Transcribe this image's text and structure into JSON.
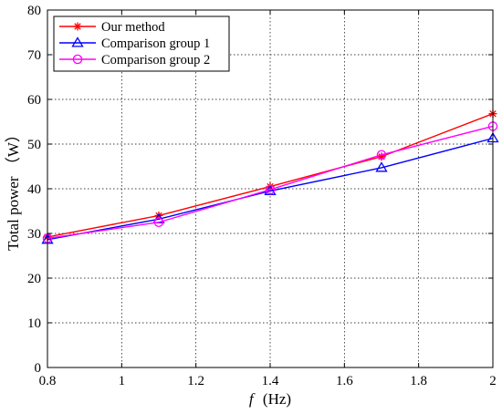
{
  "chart_data": {
    "type": "line",
    "x": [
      0.8,
      1.1,
      1.4,
      1.7,
      2.0
    ],
    "xlim": [
      0.8,
      2.0
    ],
    "ylim": [
      0,
      80
    ],
    "xticks": [
      0.8,
      1.0,
      1.2,
      1.4,
      1.6,
      1.8,
      2.0
    ],
    "xtick_labels": [
      "0.8",
      "1",
      "1.2",
      "1.4",
      "1.6",
      "1.8",
      "2"
    ],
    "yticks": [
      0,
      10,
      20,
      30,
      40,
      50,
      60,
      70,
      80
    ],
    "ytick_labels": [
      "0",
      "10",
      "20",
      "30",
      "40",
      "50",
      "60",
      "70",
      "80"
    ],
    "xlabel_symbol": "f",
    "xlabel_unit": "(Hz)",
    "ylabel": "Total power （W）",
    "grid": "dotted",
    "legend_position": "top-left",
    "series": [
      {
        "name": "Our method",
        "color": "#ff0000",
        "marker": "star",
        "values": [
          29.2,
          34.0,
          40.5,
          47.2,
          56.8
        ]
      },
      {
        "name": "Comparison group 1",
        "color": "#0000ff",
        "marker": "triangle",
        "values": [
          28.6,
          33.2,
          39.5,
          44.7,
          51.3
        ]
      },
      {
        "name": "Comparison group 2",
        "color": "#ff00ff",
        "marker": "circle",
        "values": [
          28.9,
          32.5,
          39.8,
          47.6,
          54.0
        ]
      }
    ]
  }
}
